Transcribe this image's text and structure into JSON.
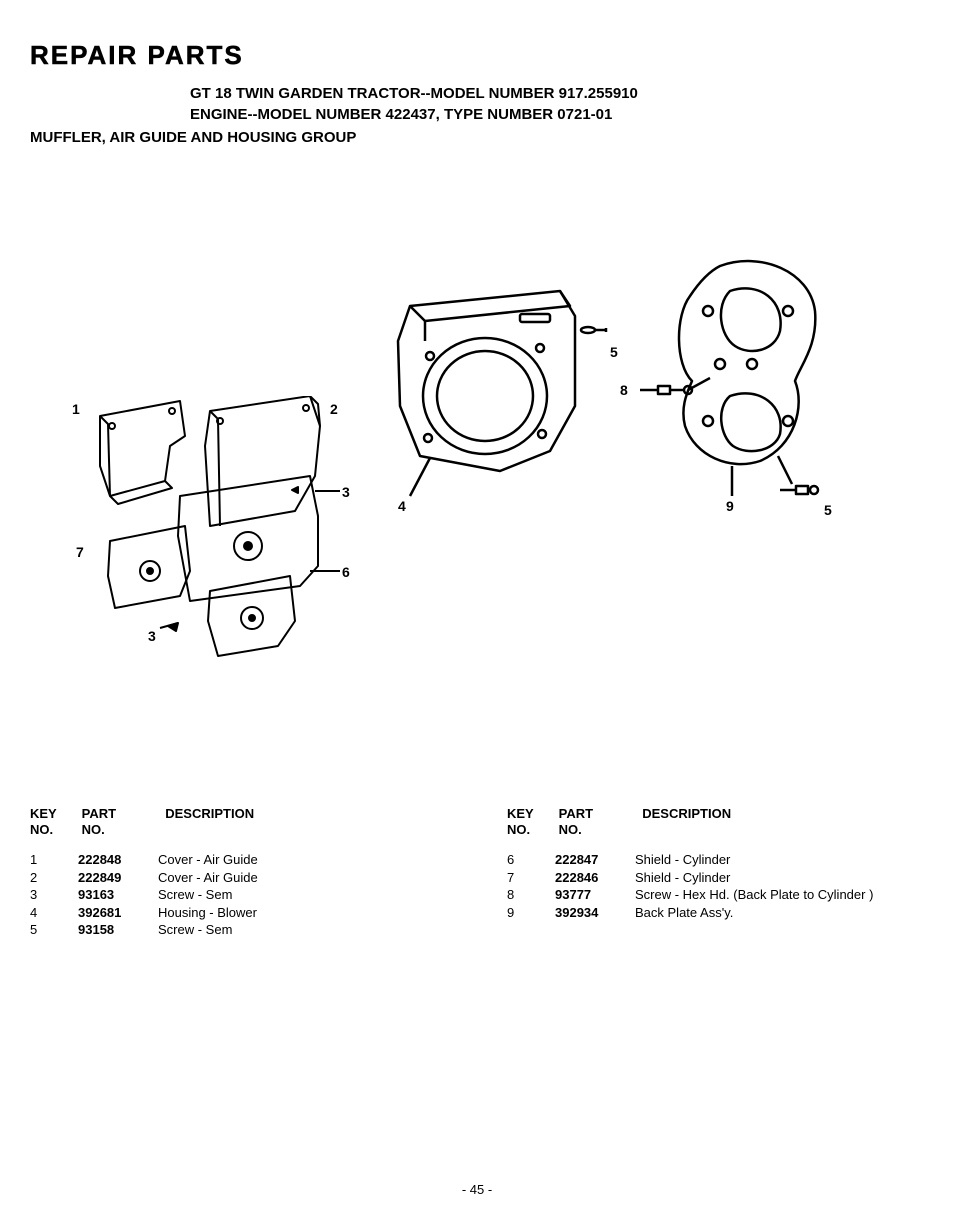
{
  "header": {
    "title": "REPAIR PARTS",
    "line1": "GT 18 TWIN GARDEN TRACTOR--MODEL NUMBER 917.255910",
    "line2": "ENGINE--MODEL  NUMBER 422437, TYPE NUMBER 0721-01",
    "section": "MUFFLER, AIR GUIDE AND HOUSING GROUP"
  },
  "diagram": {
    "callouts": [
      "1",
      "2",
      "3",
      "4",
      "5",
      "6",
      "7",
      "8",
      "9"
    ],
    "stroke": "#000000",
    "fill": "#ffffff",
    "line_width": 2
  },
  "columns": {
    "key": "KEY\nNO.",
    "part": "PART\nNO.",
    "desc": "DESCRIPTION"
  },
  "left_rows": [
    {
      "key": "1",
      "part": "222848",
      "desc": "Cover - Air Guide"
    },
    {
      "key": "2",
      "part": "222849",
      "desc": "Cover - Air Guide"
    },
    {
      "key": "3",
      "part": "93163",
      "desc": "Screw - Sem"
    },
    {
      "key": "4",
      "part": "392681",
      "desc": "Housing - Blower"
    },
    {
      "key": "5",
      "part": "93158",
      "desc": "Screw - Sem"
    }
  ],
  "right_rows": [
    {
      "key": "6",
      "part": "222847",
      "desc": "Shield - Cylinder"
    },
    {
      "key": "7",
      "part": "222846",
      "desc": "Shield - Cylinder"
    },
    {
      "key": "8",
      "part": "93777",
      "desc": "Screw - Hex Hd. (Back Plate to Cylinder )"
    },
    {
      "key": "9",
      "part": "392934",
      "desc": "Back Plate Ass'y."
    }
  ],
  "page_number": "- 45 -"
}
